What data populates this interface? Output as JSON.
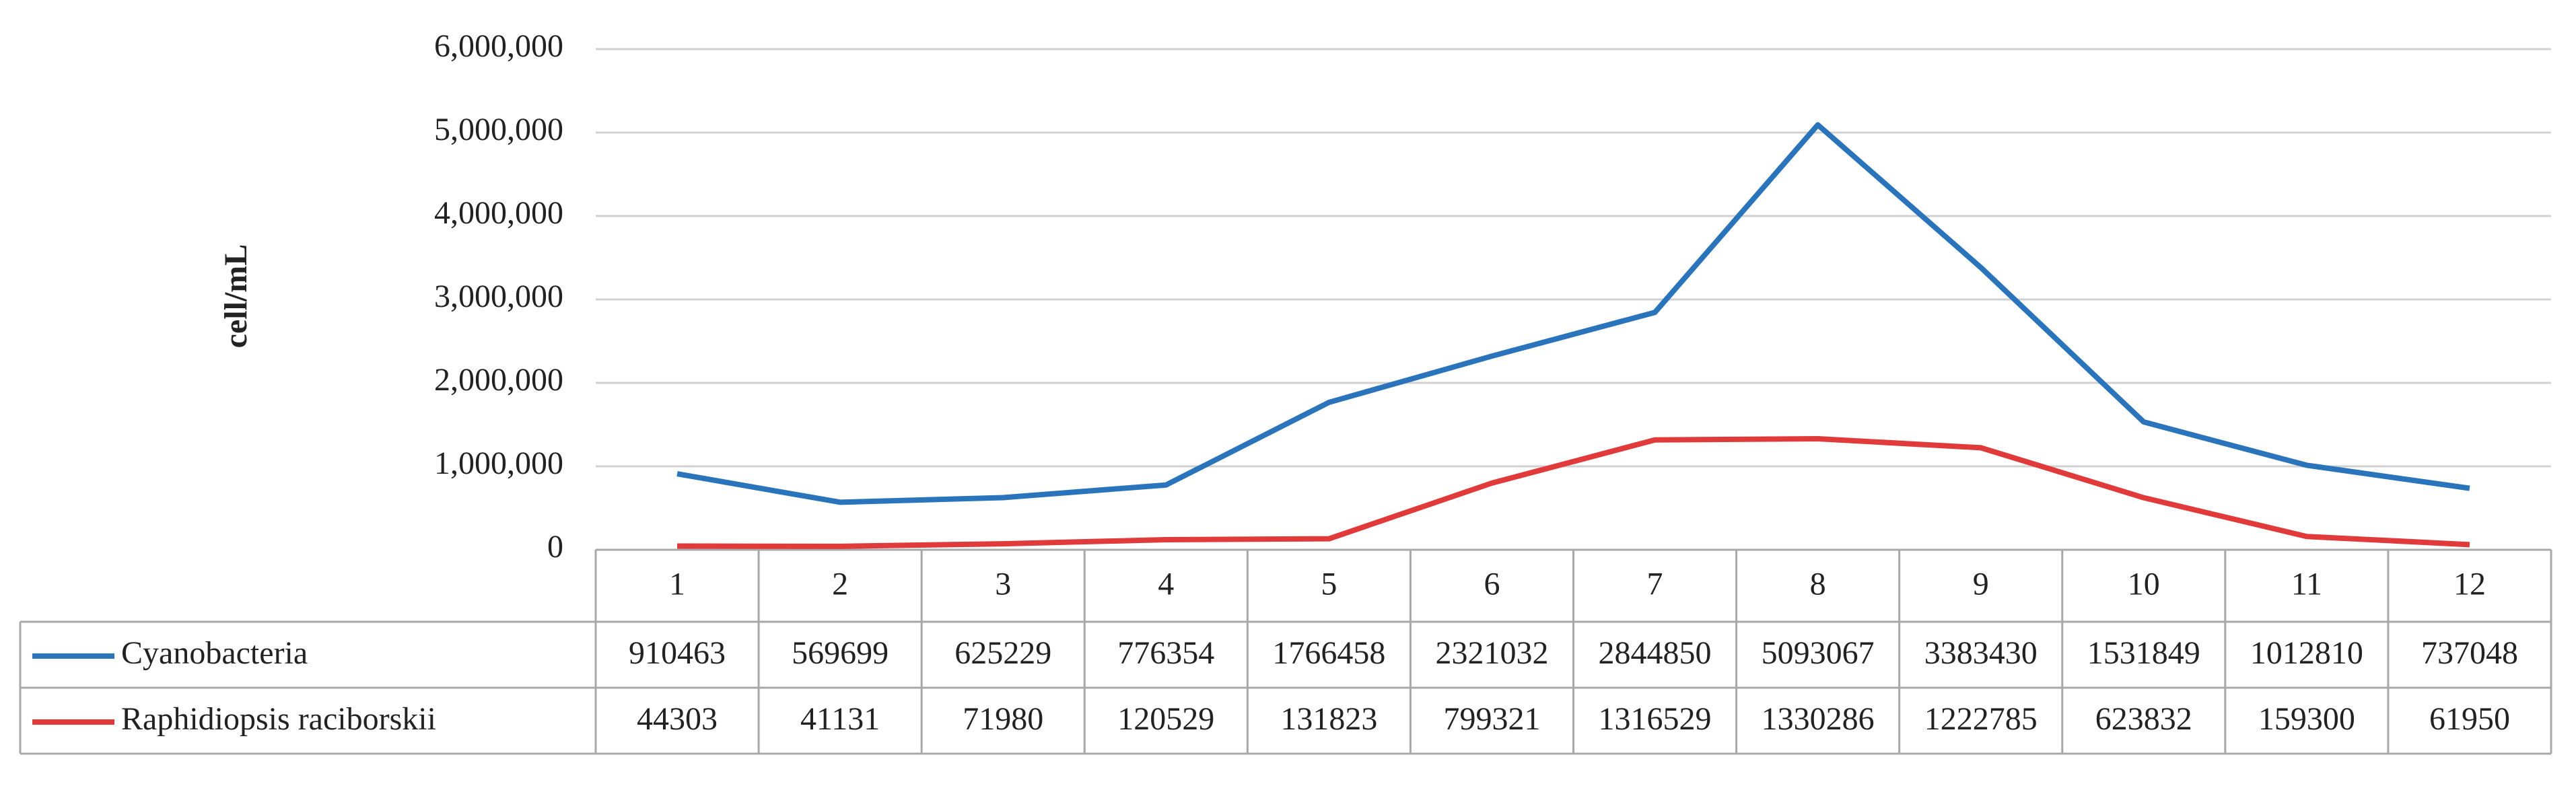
{
  "chart_data": {
    "type": "line",
    "y_label": "cell/mL",
    "categories": [
      "1",
      "2",
      "3",
      "4",
      "5",
      "6",
      "7",
      "8",
      "9",
      "10",
      "11",
      "12"
    ],
    "series": [
      {
        "name": "Cyanobacteria",
        "color": "#2a74bc",
        "values": [
          910463,
          569699,
          625229,
          776354,
          1766458,
          2321032,
          2844850,
          5093067,
          3383430,
          1531849,
          1012810,
          737048
        ]
      },
      {
        "name": "Raphidiopsis raciborskii",
        "color": "#e03a3a",
        "values": [
          44303,
          41131,
          71980,
          120529,
          131823,
          799321,
          1316529,
          1330286,
          1222785,
          623832,
          159300,
          61950
        ]
      }
    ],
    "ylim": [
      0,
      6000000
    ],
    "yticks": [
      {
        "value": 0,
        "label": "0"
      },
      {
        "value": 1000000,
        "label": "1,000,000"
      },
      {
        "value": 2000000,
        "label": "2,000,000"
      },
      {
        "value": 3000000,
        "label": "3,000,000"
      },
      {
        "value": 4000000,
        "label": "4,000,000"
      },
      {
        "value": 5000000,
        "label": "5,000,000"
      },
      {
        "value": 6000000,
        "label": "6,000,000"
      }
    ],
    "grid": true
  }
}
